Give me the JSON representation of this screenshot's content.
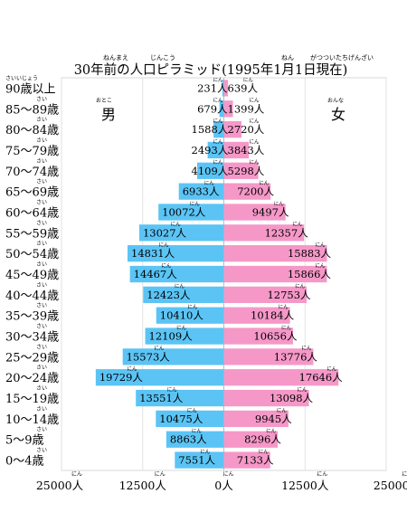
{
  "chart_data": {
    "type": "bar",
    "title": "30年前の人口ピラミッド(1995年1月1日現在)",
    "title_ruby": [
      {
        "text": "ねんまえ",
        "over": "年前"
      },
      {
        "text": "じんこう",
        "over": "人口"
      },
      {
        "text": "ねん",
        "over": "年"
      },
      {
        "text": "がつついたちげんざい",
        "over": "月1日現在"
      }
    ],
    "categories": [
      "0〜4歳",
      "5〜9歳",
      "10〜14歳",
      "15〜19歳",
      "20〜24歳",
      "25〜29歳",
      "30〜34歳",
      "35〜39歳",
      "40〜44歳",
      "45〜49歳",
      "50〜54歳",
      "55〜59歳",
      "60〜64歳",
      "65〜69歳",
      "70〜74歳",
      "75〜79歳",
      "80〜84歳",
      "85〜89歳",
      "90歳以上"
    ],
    "category_ruby": [
      "さい",
      "さい",
      "さい",
      "さい",
      "さい",
      "さい",
      "さい",
      "さい",
      "さい",
      "さい",
      "さい",
      "さい",
      "さい",
      "さい",
      "さい",
      "さい",
      "さい",
      "さい",
      "さいいじょう"
    ],
    "series": [
      {
        "name": "男",
        "name_ruby": "おとこ",
        "color": "#5bc4f5",
        "values": [
          7551,
          8863,
          10475,
          13551,
          19729,
          15573,
          12109,
          10410,
          12423,
          14467,
          14831,
          13027,
          10072,
          6933,
          4109,
          2493,
          1588,
          679,
          231
        ]
      },
      {
        "name": "女",
        "name_ruby": "おんな",
        "color": "#f598c8",
        "values": [
          7133,
          8296,
          9945,
          13098,
          17646,
          13776,
          10656,
          10184,
          12753,
          15866,
          15883,
          12357,
          9497,
          7200,
          5298,
          3843,
          2720,
          1399,
          639
        ]
      }
    ],
    "value_unit": "人",
    "value_unit_ruby": "にん",
    "xlim": [
      -25000,
      25000
    ],
    "xticks": [
      -25000,
      -12500,
      0,
      12500,
      25000
    ],
    "xtick_labels": [
      "25000人",
      "12500人",
      "0人",
      "12500人",
      "25000人"
    ],
    "grid": true
  }
}
